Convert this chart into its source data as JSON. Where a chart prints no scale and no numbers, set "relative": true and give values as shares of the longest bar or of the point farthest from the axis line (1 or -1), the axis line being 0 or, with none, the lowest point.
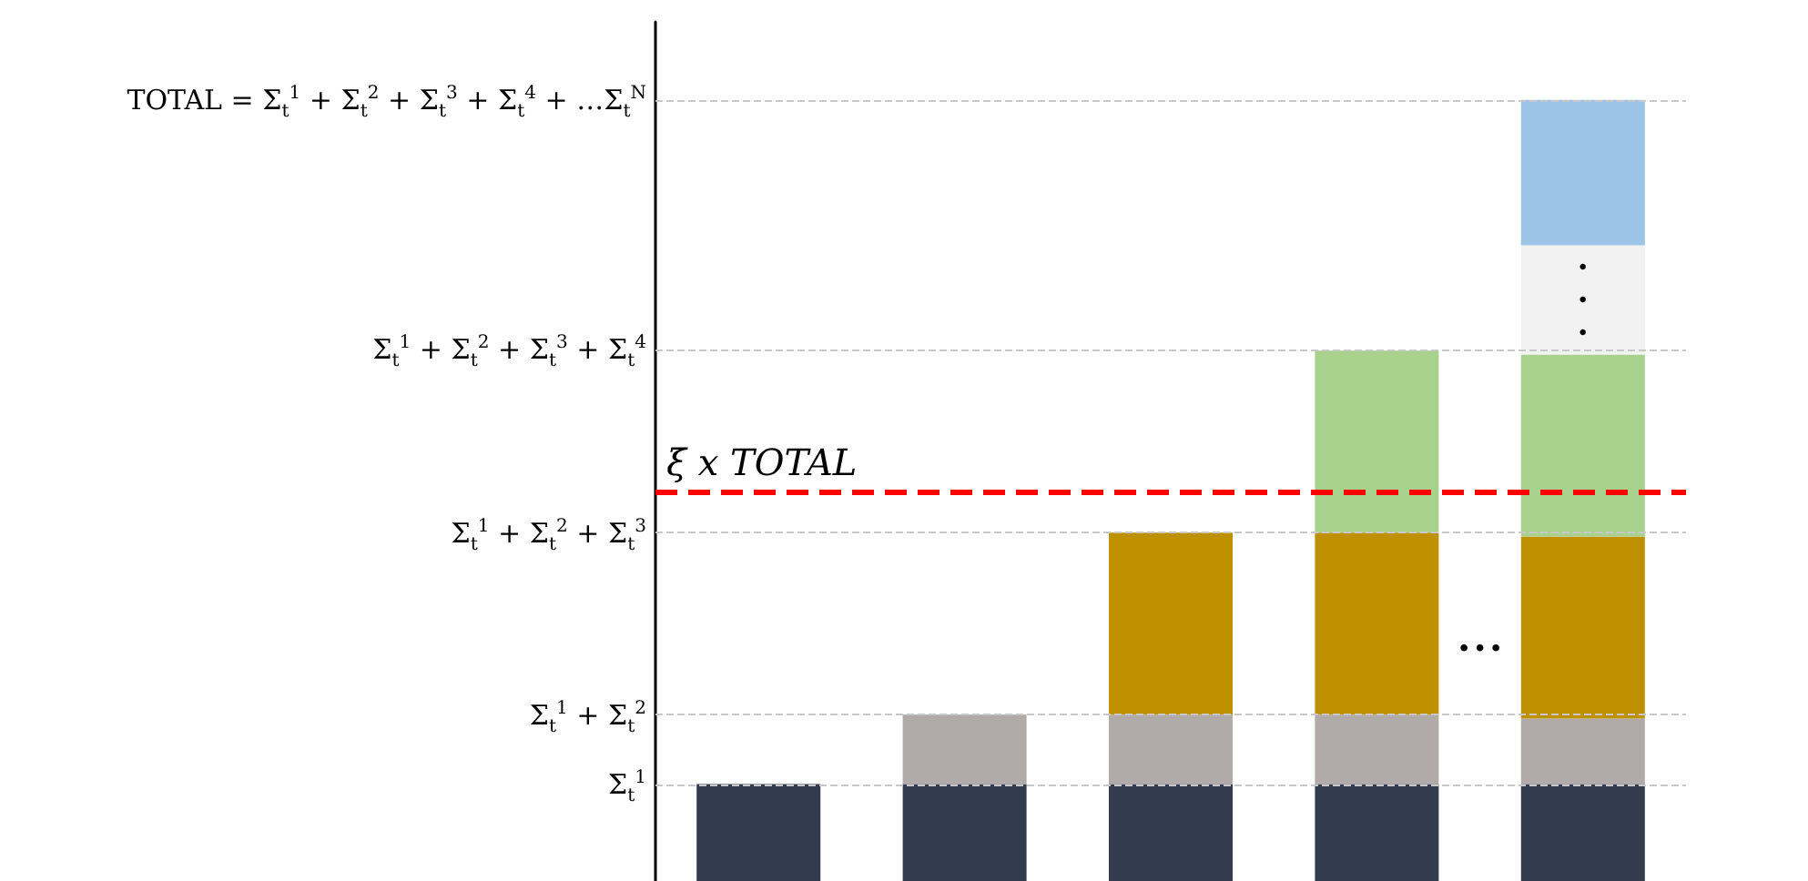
{
  "chart_data": {
    "type": "bar",
    "stacked": true,
    "relative": true,
    "categories": [
      null,
      null,
      null,
      null,
      null
    ],
    "series": [
      {
        "color": "#323c4e",
        "values": [
          0.124,
          0.124,
          0.124,
          0.124,
          0.124
        ]
      },
      {
        "color": "#b0aaa9",
        "values": [
          null,
          0.089,
          0.089,
          0.089,
          0.084
        ]
      },
      {
        "color": "#bf9000",
        "values": [
          null,
          null,
          0.233,
          0.233,
          0.233
        ]
      },
      {
        "color": "#a9d18e",
        "values": [
          null,
          null,
          null,
          0.233,
          0.233
        ]
      },
      {
        "color": "#f2f2f2",
        "values": [
          null,
          null,
          null,
          null,
          0.14
        ]
      },
      {
        "color": "#9dc3e6",
        "values": [
          null,
          null,
          null,
          null,
          0.186
        ]
      }
    ],
    "ref_lines": [
      {
        "axis": "y",
        "value": 1.0,
        "label": "TOTAL = Σ$_{t}$$^{1}$ + Σ$_{t}$$^{2}$ + Σ$_{t}$$^{3}$ + Σ$_{t}$$^{4}$ +  …Σ$_{t}$$^{N}$",
        "color": "#c8c8c8",
        "line_style": "dashed"
      },
      {
        "axis": "y",
        "value": 0.68,
        "label": "Σ$_{t}$$^{1}$ + Σ$_{t}$$^{2}$ + Σ$_{t}$$^{3}$ + Σ$_{t}$$^{4}$",
        "color": "#c8c8c8",
        "line_style": "dashed"
      },
      {
        "axis": "y",
        "value": 0.446,
        "label": "Σ$_{t}$$^{1}$ + Σ$_{t}$$^{2}$ + Σ$_{t}$$^{3}$",
        "color": "#c8c8c8",
        "line_style": "dashed"
      },
      {
        "axis": "y",
        "value": 0.213,
        "label": "Σ$_{t}$$^{1}$ + Σ$_{t}$$^{2}$",
        "color": "#c8c8c8",
        "line_style": "dashed"
      },
      {
        "axis": "y",
        "value": 0.124,
        "label": "Σ$_{t}$$^{1}$",
        "color": "#c8c8c8",
        "line_style": "dashed"
      },
      {
        "axis": "y",
        "value": 0.499,
        "label": "ξ x TOTAL",
        "color": "#ff0000",
        "line_style": "dashed"
      }
    ],
    "annotations": [
      "• • •",
      "•\n•\n•"
    ]
  }
}
